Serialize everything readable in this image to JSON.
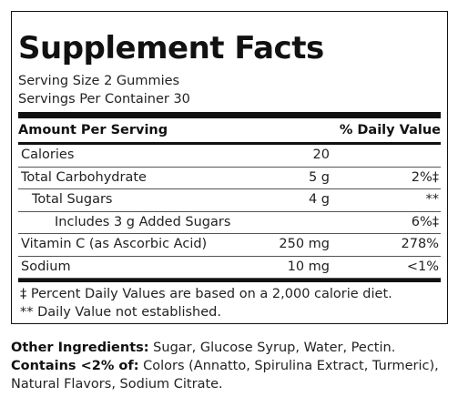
{
  "title": "Supplement Facts",
  "serving_size": "Serving Size 2 Gummies",
  "servings_per_container": "Servings Per Container 30",
  "header": {
    "amount_label": "Amount Per Serving",
    "dv_label": "% Daily Value"
  },
  "rows": [
    {
      "name": "Calories",
      "amount": "20",
      "dv": ""
    },
    {
      "name": "Total Carbohydrate",
      "amount": "5 g",
      "dv": "2%‡"
    },
    {
      "name": "Total Sugars",
      "amount": "4 g",
      "dv": "**"
    },
    {
      "name": "Includes 3 g Added Sugars",
      "amount": "",
      "dv": "6%‡"
    },
    {
      "name": "Vitamin C (as Ascorbic Acid)",
      "amount": "250 mg",
      "dv": "278%"
    },
    {
      "name": "Sodium",
      "amount": "10 mg",
      "dv": "<1%"
    }
  ],
  "footnotes": {
    "daily_value_basis": "‡ Percent Daily Values are based on a 2,000 calorie diet.",
    "not_established": "** Daily Value not established."
  },
  "ingredients": {
    "other_label": "Other Ingredients:",
    "other_text": " Sugar, Glucose Syrup, Water, Pectin.",
    "contains_label": "Contains <2% of:",
    "contains_text": " Colors (Annatto, Spirulina Extract, Turmeric), Natural Flavors, Sodium Citrate."
  }
}
